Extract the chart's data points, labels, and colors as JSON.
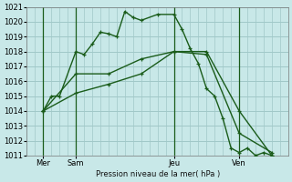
{
  "background_color": "#c8e8e8",
  "grid_color": "#a0c8c8",
  "line_color": "#1a5c1a",
  "title": "Pression niveau de la mer( hPa )",
  "ylim": [
    1011,
    1021
  ],
  "yticks": [
    1011,
    1012,
    1013,
    1014,
    1015,
    1016,
    1017,
    1018,
    1019,
    1020,
    1021
  ],
  "xlim": [
    0,
    16
  ],
  "xtick_labels": [
    "Mer",
    "Sam",
    "Jeu",
    "Ven"
  ],
  "xtick_positions": [
    1,
    3,
    9,
    13
  ],
  "vline_positions": [
    1,
    3,
    9,
    13
  ],
  "series1_x": [
    1,
    1.5,
    2,
    3,
    3.5,
    4,
    4.5,
    5,
    5.5,
    6,
    6.5,
    7,
    8,
    9,
    9.5,
    10,
    10.5,
    11,
    11.5,
    12,
    12.5,
    13,
    13.5,
    14,
    14.5,
    15
  ],
  "series1_y": [
    1014,
    1015,
    1015,
    1018,
    1017.8,
    1018.5,
    1019.3,
    1019.2,
    1019.0,
    1020.7,
    1020.3,
    1020.1,
    1020.5,
    1020.5,
    1019.5,
    1018.2,
    1017.2,
    1015.5,
    1015.0,
    1013.5,
    1011.5,
    1011.2,
    1011.5,
    1011.0,
    1011.2,
    1011.0
  ],
  "series2_x": [
    1,
    3,
    5,
    7,
    9,
    11,
    13,
    15
  ],
  "series2_y": [
    1014,
    1016.5,
    1016.5,
    1017.5,
    1018.0,
    1018.0,
    1014.0,
    1011.0
  ],
  "series3_x": [
    1,
    3,
    5,
    7,
    9,
    11,
    13,
    15
  ],
  "series3_y": [
    1014,
    1015.2,
    1015.8,
    1016.5,
    1018.0,
    1017.8,
    1012.5,
    1011.2
  ],
  "font_size_ylabel": 6,
  "font_size_tick": 6
}
